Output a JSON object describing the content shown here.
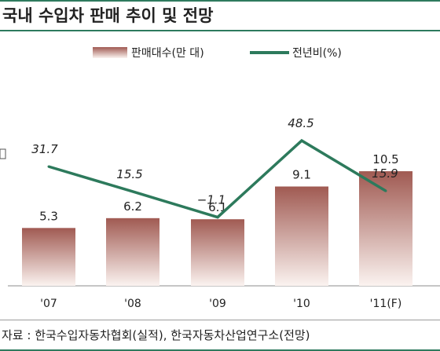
{
  "title": "국내 수입차 판매 추이 및 전망",
  "source": "자료 : 한국수입자동차협회(실적), 한국자동차산업연구소(전망)",
  "colors": {
    "accent": "#2e7a5e",
    "bar_top": "#a05a52",
    "bar_bottom": "#fbf3f0",
    "line": "#2d7a5c"
  },
  "chart_data": {
    "type": "bar",
    "categories": [
      "'07",
      "'08",
      "'09",
      "'10",
      "'11(F)"
    ],
    "series": [
      {
        "name": "판매대수(만 대)",
        "type": "bar",
        "values": [
          5.3,
          6.2,
          6.1,
          9.1,
          10.5
        ],
        "labels": [
          "5.3",
          "6.2",
          "6.1",
          "9.1",
          "10.5"
        ]
      },
      {
        "name": "전년비(%)",
        "type": "line",
        "values": [
          31.7,
          15.5,
          -1.1,
          48.5,
          15.9
        ],
        "labels": [
          "31.7",
          "15.5",
          "−1.1",
          "48.5",
          "15.9"
        ]
      }
    ],
    "legend": "top-center"
  }
}
